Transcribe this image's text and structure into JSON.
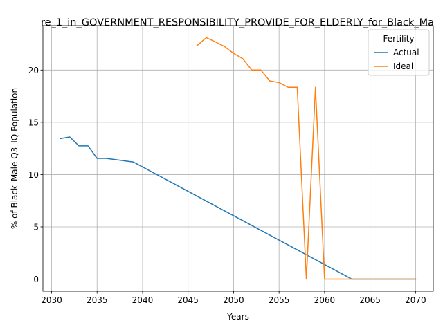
{
  "chart_data": {
    "type": "line",
    "title": "re_1_in_GOVERNMENT_RESPONSIBILITY_PROVIDE_FOR_ELDERLY_for_Black_Ma",
    "xlabel": "Years",
    "ylabel": "% of Black_Male Q3_IQ Population",
    "xlim": [
      2029.05,
      2071.95
    ],
    "ylim": [
      -1.155,
      24.255
    ],
    "xticks": [
      2030,
      2035,
      2040,
      2045,
      2050,
      2055,
      2060,
      2065,
      2070
    ],
    "yticks": [
      0,
      5,
      10,
      15,
      20
    ],
    "grid": true,
    "legend": {
      "title": "Fertility",
      "placement": "top-right"
    },
    "series": [
      {
        "name": "Actual",
        "color": "#1f77b4",
        "x": [
          2031,
          2032,
          2033,
          2034,
          2035,
          2036,
          2039,
          2063,
          2070
        ],
        "y": [
          13.45,
          13.6,
          12.75,
          12.75,
          11.55,
          11.55,
          11.2,
          0.0,
          0.0
        ]
      },
      {
        "name": "Ideal",
        "color": "#ff7f0e",
        "x": [
          2046,
          2047,
          2048,
          2049,
          2050,
          2051,
          2052,
          2053,
          2054,
          2055,
          2056,
          2057,
          2058,
          2059,
          2060,
          2061,
          2062,
          2063,
          2064,
          2065,
          2066,
          2067,
          2068,
          2069,
          2070
        ],
        "y": [
          22.35,
          23.1,
          22.7,
          22.25,
          21.6,
          21.1,
          20.0,
          20.0,
          18.95,
          18.8,
          18.35,
          18.35,
          0.0,
          18.35,
          0.0,
          0.0,
          0.0,
          0.0,
          0.0,
          0.0,
          0.0,
          0.0,
          0.0,
          0.0,
          0.0
        ]
      }
    ]
  }
}
